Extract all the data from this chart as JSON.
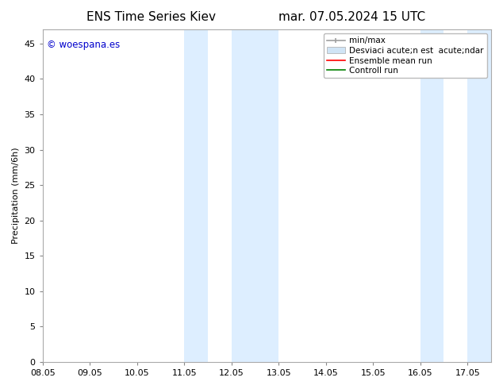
{
  "title_left": "ENS Time Series Kiev",
  "title_right": "mar. 07.05.2024 15 UTC",
  "ylabel": "Precipitation (mm/6h)",
  "watermark": "© woespana.es",
  "xlim_left": 8.05,
  "xlim_right": 17.55,
  "ylim_bottom": 0,
  "ylim_top": 47,
  "yticks": [
    0,
    5,
    10,
    15,
    20,
    25,
    30,
    35,
    40,
    45
  ],
  "xtick_labels": [
    "08.05",
    "09.05",
    "10.05",
    "11.05",
    "12.05",
    "13.05",
    "14.05",
    "15.05",
    "16.05",
    "17.05"
  ],
  "xtick_positions": [
    8.05,
    9.05,
    10.05,
    11.05,
    12.05,
    13.05,
    14.05,
    15.05,
    16.05,
    17.05
  ],
  "shaded_regions": [
    {
      "xmin": 11.05,
      "xmax": 11.55
    },
    {
      "xmin": 12.05,
      "xmax": 13.05
    },
    {
      "xmin": 16.05,
      "xmax": 16.55
    },
    {
      "xmin": 17.05,
      "xmax": 17.55
    }
  ],
  "shade_color": "#ddeeff",
  "background_color": "#ffffff",
  "legend_label_minmax": "min/max",
  "legend_label_std": "Desviaci acute;n est  acute;ndar",
  "legend_label_ensemble": "Ensemble mean run",
  "legend_label_control": "Controll run",
  "legend_color_minmax": "#a0a0a0",
  "legend_color_std": "#d0e4f5",
  "legend_color_ensemble": "#ff0000",
  "legend_color_control": "#008000",
  "title_fontsize": 11,
  "axis_fontsize": 8,
  "tick_fontsize": 8,
  "legend_fontsize": 7.5
}
